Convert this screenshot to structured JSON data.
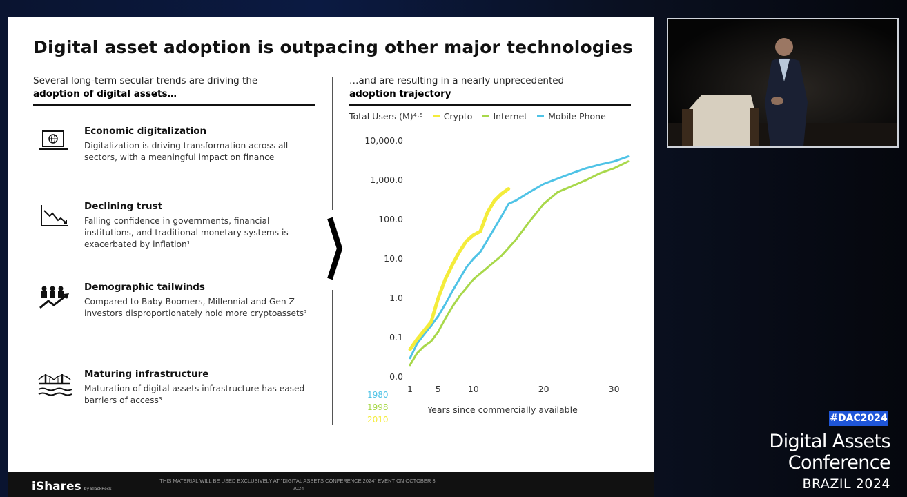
{
  "slide": {
    "title": "Digital asset adoption is outpacing other major technologies",
    "left_heading_line1": "Several long-term secular trends are driving the",
    "left_heading_bold": "adoption of digital assets…",
    "right_heading_line1": "…and are resulting in a nearly unprecedented",
    "right_heading_bold": "adoption trajectory",
    "trends": [
      {
        "icon": "laptop-globe-icon",
        "title": "Economic digitalization",
        "desc": "Digitalization is driving transformation across all sectors, with a meaningful impact on finance"
      },
      {
        "icon": "declining-chart-icon",
        "title": "Declining trust",
        "desc": "Falling confidence in governments, financial institutions, and traditional monetary systems is exacerbated by inflation¹"
      },
      {
        "icon": "people-growth-icon",
        "title": "Demographic tailwinds",
        "desc": "Compared to Baby Boomers, Millennial and Gen Z investors disproportionately hold more cryptoassets²"
      },
      {
        "icon": "bridge-icon",
        "title": "Maturing infrastructure",
        "desc": "Maturation of digital assets infrastructure has eased barriers of access³"
      }
    ]
  },
  "chart_data": {
    "type": "line",
    "title": "",
    "ylabel": "Total Users (M)⁴·⁵",
    "xlabel": "Years since commercially available",
    "y_scale": "log",
    "y_ticks": [
      "10,000.0",
      "1,000.0",
      "100.0",
      "10.0",
      "1.0",
      "0.1",
      "0.0"
    ],
    "y_tick_values": [
      10000,
      1000,
      100,
      10,
      1,
      0.1,
      0.01
    ],
    "x_ticks": [
      "1",
      "5",
      "10",
      "20",
      "30"
    ],
    "x_tick_values": [
      1,
      5,
      10,
      20,
      30
    ],
    "xlim": [
      1,
      32
    ],
    "start_years": [
      {
        "label": "1980",
        "color": "#4fc3e6"
      },
      {
        "label": "1998",
        "color": "#a8d84a"
      },
      {
        "label": "2010",
        "color": "#f4ec3a"
      }
    ],
    "series": [
      {
        "name": "Crypto",
        "color": "#f4ec3a",
        "x": [
          1,
          2,
          3,
          4,
          5,
          6,
          7,
          8,
          9,
          10,
          11,
          12,
          13,
          14,
          15
        ],
        "y": [
          0.05,
          0.09,
          0.15,
          0.25,
          1.0,
          3.0,
          7.0,
          15,
          28,
          40,
          50,
          150,
          300,
          450,
          600
        ]
      },
      {
        "name": "Internet",
        "color": "#a8d84a",
        "x": [
          1,
          2,
          3,
          4,
          5,
          6,
          7,
          8,
          10,
          12,
          14,
          16,
          18,
          20,
          22,
          24,
          26,
          28,
          30,
          32
        ],
        "y": [
          0.02,
          0.04,
          0.06,
          0.08,
          0.14,
          0.3,
          0.6,
          1.1,
          3,
          6,
          12,
          30,
          90,
          250,
          500,
          700,
          1000,
          1500,
          2000,
          3000
        ]
      },
      {
        "name": "Mobile Phone",
        "color": "#4fc3e6",
        "x": [
          1,
          2,
          3,
          4,
          5,
          6,
          7,
          8,
          9,
          10,
          11,
          12,
          13,
          14,
          15,
          16,
          18,
          20,
          22,
          24,
          26,
          28,
          30,
          32
        ],
        "y": [
          0.03,
          0.07,
          0.12,
          0.2,
          0.35,
          0.7,
          1.5,
          3,
          6,
          10,
          15,
          30,
          60,
          120,
          250,
          300,
          500,
          800,
          1100,
          1500,
          2000,
          2500,
          3000,
          4000
        ]
      }
    ]
  },
  "footer": {
    "brand": "iShares",
    "brand_sub": "by BlackRock",
    "disclaimer": "THIS MATERIAL WILL BE USED EXCLUSIVELY AT \"DIGITAL ASSETS CONFERENCE 2024\" EVENT ON OCTOBER 3, 2024"
  },
  "overlay": {
    "badge": "#DAC2024",
    "title_line1": "Digital Assets",
    "title_line2": "Conference",
    "subtitle": "BRAZIL 2024"
  }
}
